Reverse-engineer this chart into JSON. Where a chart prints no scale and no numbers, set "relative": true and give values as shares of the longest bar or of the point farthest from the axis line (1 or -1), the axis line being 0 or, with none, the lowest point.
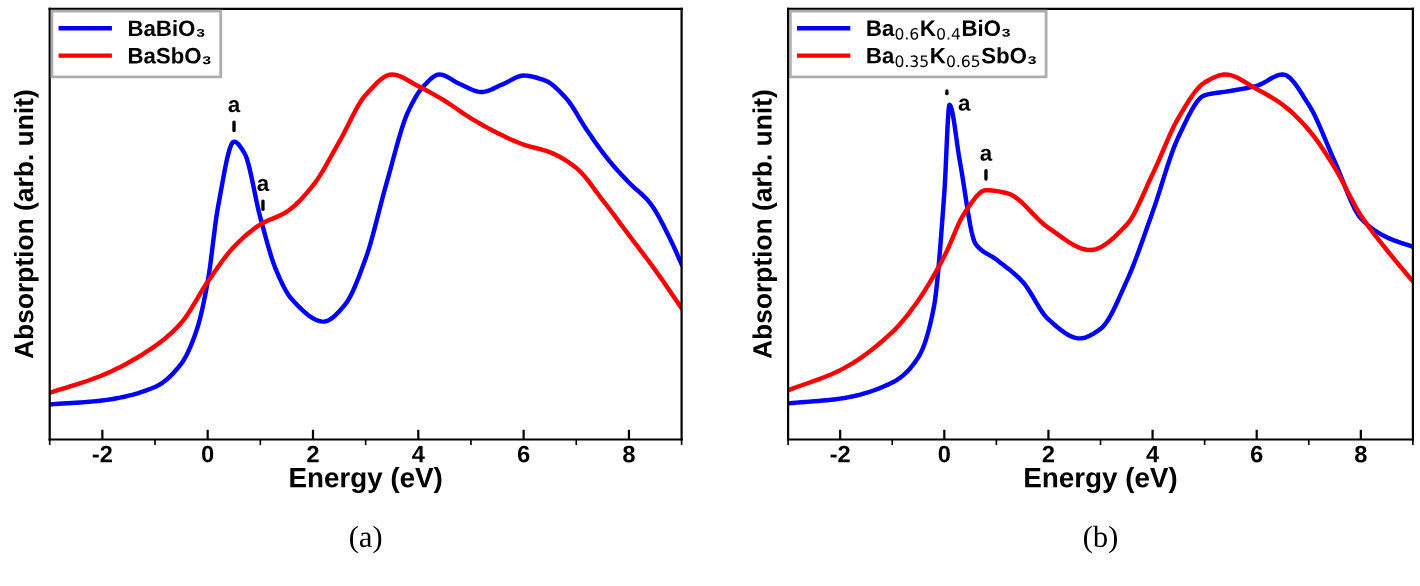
{
  "chart_data": [
    {
      "type": "line",
      "relative": true,
      "xlabel": "Energy (eV)",
      "ylabel": "Absorption (arb. unit)",
      "xlim": [
        -3,
        9
      ],
      "xticks": [
        -2,
        0,
        2,
        4,
        6,
        8
      ],
      "tick_labels": "x",
      "legend": "top left",
      "grid": false,
      "series": [
        {
          "name": "BaBiO₃",
          "color": "#0000ff",
          "x": [
            -3,
            -2,
            -1,
            -0.5,
            -0.2,
            0,
            0.2,
            0.5,
            0.7,
            1.0,
            1.3,
            1.6,
            2.2,
            2.6,
            3.0,
            3.4,
            3.8,
            4.1,
            4.4,
            4.8,
            5.2,
            5.6,
            6.0,
            6.4,
            6.8,
            7.2,
            7.6,
            8.0,
            8.4,
            8.8,
            9.0
          ],
          "values": [
            0.096,
            0.107,
            0.144,
            0.208,
            0.304,
            0.432,
            0.64,
            0.816,
            0.784,
            0.608,
            0.464,
            0.384,
            0.323,
            0.368,
            0.496,
            0.704,
            0.896,
            0.968,
            1.0,
            0.973,
            0.952,
            0.973,
            0.997,
            0.984,
            0.936,
            0.848,
            0.768,
            0.704,
            0.648,
            0.544,
            0.48
          ]
        },
        {
          "name": "BaSbO₃",
          "color": "#ff0000",
          "x": [
            -3,
            -2,
            -1,
            -0.5,
            0,
            0.5,
            1.0,
            1.5,
            2.0,
            2.5,
            3.0,
            3.5,
            4.0,
            4.5,
            5.0,
            5.5,
            6.0,
            6.5,
            7.0,
            7.5,
            8.0,
            8.5,
            9.0
          ],
          "values": [
            0.128,
            0.176,
            0.256,
            0.32,
            0.432,
            0.528,
            0.589,
            0.624,
            0.696,
            0.816,
            0.944,
            1.0,
            0.968,
            0.928,
            0.88,
            0.84,
            0.808,
            0.787,
            0.744,
            0.656,
            0.56,
            0.464,
            0.36
          ]
        }
      ],
      "annotations": [
        {
          "text": "a",
          "x": 0.5,
          "y": 0.816
        },
        {
          "text": "a",
          "x": 1.05,
          "y": 0.6
        },
        "(a)"
      ]
    },
    {
      "type": "line",
      "relative": true,
      "xlabel": "Energy (eV)",
      "ylabel": "Absorption (arb. unit)",
      "xlim": [
        -3,
        9
      ],
      "xticks": [
        -2,
        0,
        2,
        4,
        6,
        8
      ],
      "tick_labels": "x",
      "legend": "top left",
      "grid": false,
      "series": [
        {
          "name": "Ba$_{0.6}$K$_{0.4}$BiO₃",
          "color": "#0000ff",
          "x": [
            -3,
            -2,
            -1,
            -0.5,
            -0.2,
            0,
            0.1,
            0.3,
            0.6,
            1.0,
            1.5,
            2.0,
            2.6,
            3.0,
            3.5,
            4.0,
            4.5,
            5.0,
            5.5,
            6.0,
            6.5,
            7.0,
            7.5,
            8.0,
            8.5,
            9.0
          ],
          "values": [
            0.099,
            0.112,
            0.156,
            0.225,
            0.363,
            0.675,
            0.917,
            0.761,
            0.536,
            0.493,
            0.433,
            0.329,
            0.277,
            0.303,
            0.433,
            0.623,
            0.83,
            0.943,
            0.955,
            0.969,
            1.0,
            0.917,
            0.761,
            0.606,
            0.554,
            0.528
          ]
        },
        {
          "name": "Ba$_{0.35}$K$_{0.65}$SbO₃",
          "color": "#ff0000",
          "x": [
            -3,
            -2,
            -1,
            -0.5,
            0,
            0.4,
            0.8,
            1.2,
            2.0,
            2.8,
            3.5,
            4.0,
            4.5,
            5.0,
            5.4,
            6.0,
            6.5,
            7.0,
            7.5,
            8.0,
            8.5,
            9.0
          ],
          "values": [
            0.135,
            0.19,
            0.294,
            0.381,
            0.502,
            0.623,
            0.683,
            0.675,
            0.58,
            0.519,
            0.588,
            0.727,
            0.882,
            0.978,
            1.0,
            0.96,
            0.917,
            0.848,
            0.744,
            0.614,
            0.519,
            0.433
          ]
        }
      ],
      "annotations": [
        {
          "text": "a",
          "x": 0.05,
          "y": 0.917
        },
        {
          "text": "a",
          "x": 0.8,
          "y": 0.683
        },
        "(b)"
      ]
    }
  ]
}
